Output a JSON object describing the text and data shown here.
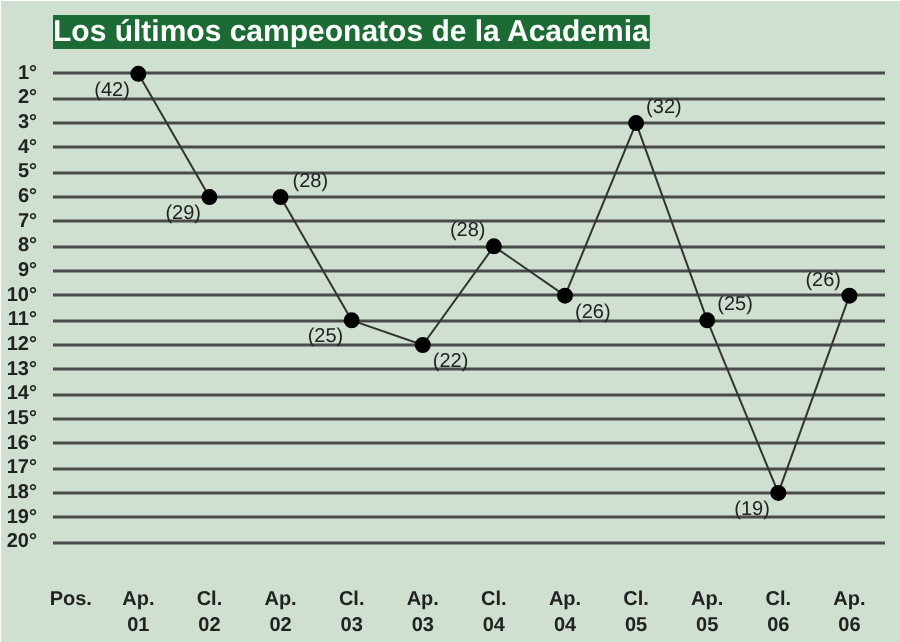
{
  "chart_data": {
    "type": "line",
    "title": "Los últimos campeonatos de la Academia",
    "xlabel": "Pos.",
    "categories": [
      "Ap.\n01",
      "Cl.\n02",
      "Ap.\n02",
      "Cl.\n03",
      "Ap.\n03",
      "Cl.\n04",
      "Ap.\n04",
      "Cl.\n05",
      "Ap.\n05",
      "Cl.\n06",
      "Ap.\n06"
    ],
    "series": [
      {
        "color": "#333333",
        "values": [
          1,
          6,
          null,
          null,
          null,
          null,
          null,
          null,
          null,
          null,
          null
        ]
      },
      {
        "color": "#333333",
        "values": [
          null,
          null,
          6,
          11,
          12,
          8,
          10,
          3,
          11,
          18,
          10
        ]
      }
    ],
    "ylim": [
      20.6,
      0.4
    ],
    "yticks": [
      {
        "value": 1,
        "label": "1°"
      },
      {
        "value": 2,
        "label": "2°"
      },
      {
        "value": 3,
        "label": "3°"
      },
      {
        "value": 4,
        "label": "4°"
      },
      {
        "value": 5,
        "label": "5°"
      },
      {
        "value": 6,
        "label": "6°"
      },
      {
        "value": 7,
        "label": "7°"
      },
      {
        "value": 8,
        "label": "8°"
      },
      {
        "value": 9,
        "label": "9°"
      },
      {
        "value": 10,
        "label": "10°"
      },
      {
        "value": 11,
        "label": "11°"
      },
      {
        "value": 12,
        "label": "12°"
      },
      {
        "value": 13,
        "label": "13°"
      },
      {
        "value": 14,
        "label": "14°"
      },
      {
        "value": 15,
        "label": "15°"
      },
      {
        "value": 16,
        "label": "16°"
      },
      {
        "value": 17,
        "label": "17°"
      },
      {
        "value": 18,
        "label": "18°"
      },
      {
        "value": 19,
        "label": "19°"
      },
      {
        "value": 20,
        "label": "20°"
      }
    ],
    "grid": "y",
    "marker": "circle",
    "line_style": "solid",
    "annotations": [
      {
        "text": "(42)",
        "x": "Ap.\n01",
        "y": 1
      },
      {
        "text": "(29)",
        "x": "Cl.\n02",
        "y": 6
      },
      {
        "text": "(28)",
        "x": "Ap.\n02",
        "y": 6
      },
      {
        "text": "(25)",
        "x": "Cl.\n03",
        "y": 11
      },
      {
        "text": "(22)",
        "x": "Ap.\n03",
        "y": 12
      },
      {
        "text": "(28)",
        "x": "Cl.\n04",
        "y": 8
      },
      {
        "text": "(26)",
        "x": "Ap.\n04",
        "y": 10
      },
      {
        "text": "(32)",
        "x": "Cl.\n05",
        "y": 3
      },
      {
        "text": "(25)",
        "x": "Ap.\n05",
        "y": 11
      },
      {
        "text": "(19)",
        "x": "Cl.\n06",
        "y": 18
      },
      {
        "text": "(26)",
        "x": "Ap.\n06",
        "y": 10
      }
    ]
  }
}
